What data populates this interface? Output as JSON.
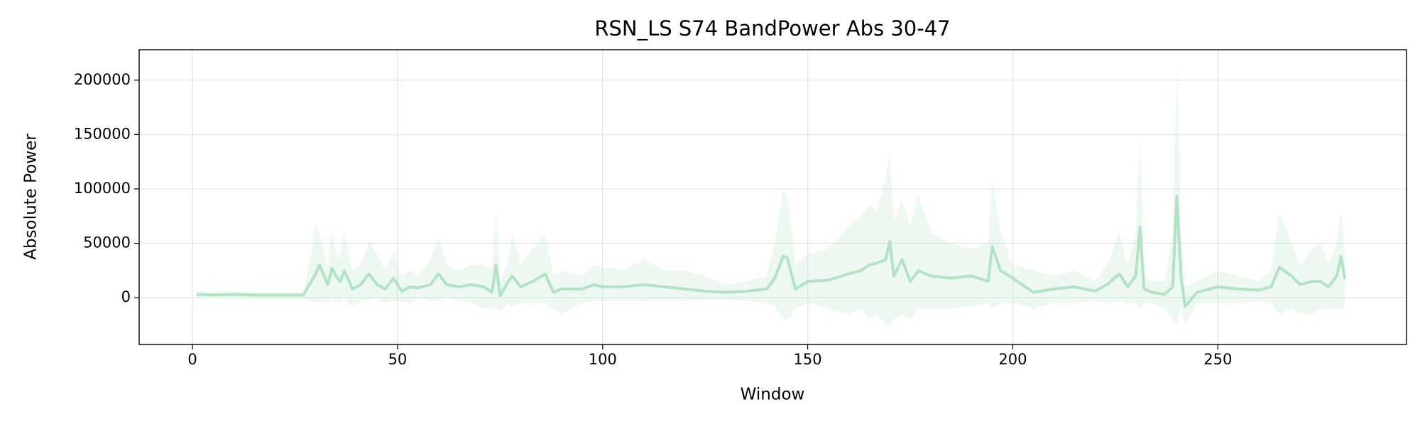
{
  "chart_data": {
    "type": "line",
    "title": "RSN_LS S74 BandPower Abs 30-47",
    "x_label": "Window",
    "y_label": "Absolute Power",
    "color": "#b3e3c5",
    "grid": true,
    "xlim": [
      -13,
      296
    ],
    "ylim": [
      -43000,
      228000
    ],
    "xticks": [
      0,
      50,
      100,
      150,
      200,
      250
    ],
    "yticks": [
      0,
      50000,
      100000,
      150000,
      200000
    ],
    "x": [
      1,
      5,
      10,
      15,
      20,
      25,
      27,
      29,
      30,
      31,
      33,
      34,
      35,
      36,
      37,
      39,
      41,
      43,
      45,
      47,
      49,
      51,
      53,
      55,
      58,
      60,
      62,
      65,
      68,
      71,
      73,
      74,
      75,
      77,
      78,
      80,
      83,
      86,
      88,
      90,
      95,
      98,
      100,
      105,
      110,
      115,
      120,
      125,
      130,
      135,
      140,
      142,
      144,
      145,
      147,
      150,
      155,
      160,
      163,
      165,
      167,
      169,
      170,
      171,
      173,
      175,
      177,
      180,
      185,
      190,
      194,
      195,
      197,
      200,
      205,
      210,
      215,
      220,
      223,
      226,
      228,
      230,
      231,
      232,
      234,
      237,
      239,
      240,
      241,
      242,
      245,
      250,
      255,
      260,
      263,
      265,
      268,
      270,
      273,
      275,
      277,
      279,
      280,
      281
    ],
    "values": [
      3000,
      2500,
      3000,
      2500,
      2500,
      2500,
      2500,
      15000,
      22000,
      30000,
      12000,
      27000,
      20000,
      15000,
      25000,
      8000,
      12000,
      22000,
      12000,
      8000,
      18000,
      6000,
      10000,
      9000,
      12000,
      22000,
      12000,
      10000,
      12000,
      10000,
      5000,
      30000,
      2000,
      15000,
      20000,
      10000,
      15000,
      22000,
      5000,
      8000,
      8000,
      12000,
      10000,
      10000,
      12000,
      10000,
      8000,
      6000,
      5000,
      6000,
      8000,
      18000,
      38000,
      37000,
      8000,
      15000,
      16000,
      22000,
      25000,
      30000,
      32000,
      35000,
      52000,
      20000,
      35000,
      15000,
      25000,
      20000,
      18000,
      20000,
      15000,
      47000,
      25000,
      18000,
      5000,
      8000,
      10000,
      6000,
      12000,
      22000,
      10000,
      20000,
      65000,
      8000,
      5000,
      3000,
      10000,
      93000,
      20000,
      -8000,
      5000,
      10000,
      8000,
      7000,
      10000,
      28000,
      20000,
      12000,
      15000,
      15000,
      10000,
      20000,
      38000,
      17000
    ],
    "lower": [
      0,
      500,
      0,
      0,
      0,
      0,
      0,
      -3000,
      -5000,
      -3000,
      -5000,
      0,
      -3000,
      -5000,
      0,
      -8000,
      -3000,
      -2000,
      0,
      -5000,
      -3000,
      -3000,
      -5000,
      0,
      -3000,
      -3000,
      0,
      -3000,
      -5000,
      -10000,
      -8000,
      -10000,
      -12000,
      -5000,
      -8000,
      -5000,
      -5000,
      -5000,
      -10000,
      -15000,
      -5000,
      -3000,
      -3000,
      -3000,
      -3000,
      -2000,
      -3000,
      -2000,
      -2000,
      -3000,
      -5000,
      -8000,
      -20000,
      -20000,
      -10000,
      -5000,
      -10000,
      -15000,
      -10000,
      -20000,
      -15000,
      -25000,
      -25000,
      -20000,
      -15000,
      -20000,
      -10000,
      -10000,
      -10000,
      -8000,
      -5000,
      -10000,
      -5000,
      -5000,
      -10000,
      -5000,
      -5000,
      -3000,
      -5000,
      -3000,
      -5000,
      -5000,
      -10000,
      -5000,
      -5000,
      -10000,
      -20000,
      -25000,
      -10000,
      -25000,
      -5000,
      -5000,
      -5000,
      -3000,
      -5000,
      -15000,
      -10000,
      -15000,
      -15000,
      -10000,
      -10000,
      -10000,
      -10000,
      -10000
    ],
    "upper": [
      6000,
      5000,
      6000,
      5000,
      5000,
      5000,
      4000,
      40000,
      68000,
      60000,
      30000,
      62000,
      40000,
      35000,
      62000,
      25000,
      30000,
      52000,
      40000,
      25000,
      42000,
      20000,
      25000,
      20000,
      35000,
      56000,
      30000,
      25000,
      30000,
      30000,
      25000,
      80000,
      15000,
      35000,
      60000,
      30000,
      45000,
      60000,
      20000,
      25000,
      20000,
      30000,
      28000,
      25000,
      35000,
      25000,
      25000,
      20000,
      12000,
      15000,
      20000,
      50000,
      98000,
      95000,
      30000,
      40000,
      45000,
      65000,
      75000,
      85000,
      80000,
      110000,
      132000,
      70000,
      90000,
      65000,
      95000,
      60000,
      50000,
      45000,
      50000,
      108000,
      60000,
      30000,
      25000,
      20000,
      25000,
      15000,
      30000,
      60000,
      30000,
      60000,
      145000,
      20000,
      15000,
      15000,
      60000,
      215000,
      60000,
      10000,
      15000,
      25000,
      20000,
      15000,
      25000,
      78000,
      50000,
      30000,
      45000,
      50000,
      30000,
      50000,
      80000,
      40000
    ]
  }
}
